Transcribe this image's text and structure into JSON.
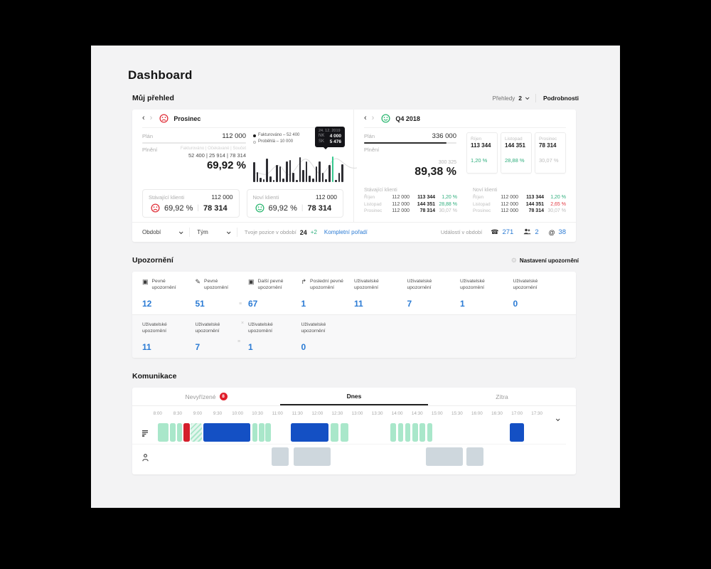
{
  "icons": {
    "nav_prev": "‹",
    "nav_next": "›",
    "gear": "⚙",
    "phone": "☎",
    "at": "@",
    "display": "▣",
    "pen": "✎",
    "return": "↱",
    "close": "×",
    "drag": "≡"
  },
  "header": {
    "title": "Dashboard"
  },
  "overview": {
    "title": "Můj přehled",
    "controls": {
      "views_label": "Přehledy",
      "views_count": "2",
      "details": "Podrobnosti"
    },
    "left_card": {
      "title": "Prosinec",
      "mood": "sad",
      "plan_label": "Plán",
      "plan_value": "112 000",
      "fill_label": "Plnění",
      "fill_columns": "Fakturováno | Očekávané | Součet",
      "fill_values": "52 400 | 25 914 | 78 314",
      "fill_percent": "69,92 %",
      "clients": [
        {
          "label": "Stávající klienti",
          "plan": "112 000",
          "mood": "sad",
          "percent": "69,92 %",
          "value": "78 314"
        },
        {
          "label": "Noví klienti",
          "plan": "112 000",
          "mood": "happy",
          "percent": "69,92 %",
          "value": "78 314"
        }
      ]
    },
    "right_card": {
      "title": "Q4 2018",
      "mood": "happy",
      "plan_label": "Plán",
      "plan_value": "336 000",
      "plan_fill_pct": 89.38,
      "fill_label": "Plnění",
      "fill_small": "300 325",
      "fill_percent": "89,38 %",
      "months": [
        {
          "name": "Říjen",
          "value": "113 344",
          "percent": "1,20 %",
          "tone": "green"
        },
        {
          "name": "Listopad",
          "value": "144 351",
          "percent": "28,88 %",
          "tone": "green"
        },
        {
          "name": "Prosinec",
          "value": "78 314",
          "percent": "30,07 %",
          "tone": "gray"
        }
      ],
      "tables": [
        {
          "label": "Stávající klienti",
          "rows": [
            {
              "month": "Říjen",
              "plan": "112 000",
              "value": "113 344",
              "percent": "1,20 %",
              "tone": "green"
            },
            {
              "month": "Listopad",
              "plan": "112 000",
              "value": "144 351",
              "percent": "28,88 %",
              "tone": "green"
            },
            {
              "month": "Prosinec",
              "plan": "112 000",
              "value": "78 314",
              "percent": "30,07 %",
              "tone": "gray"
            }
          ]
        },
        {
          "label": "Noví klienti",
          "rows": [
            {
              "month": "Říjen",
              "plan": "112 000",
              "value": "113 344",
              "percent": "1,20 %",
              "tone": "green"
            },
            {
              "month": "Listopad",
              "plan": "112 000",
              "value": "144 351",
              "percent": "2,65 %",
              "tone": "red"
            },
            {
              "month": "Prosinec",
              "plan": "112 000",
              "value": "78 314",
              "percent": "30,07 %",
              "tone": "gray"
            }
          ]
        }
      ]
    },
    "footer": {
      "period_label": "Období",
      "team_label": "Tým",
      "position_label": "Tvoje pozice v období",
      "position_value": "24",
      "position_delta": "+2",
      "ranking_link": "Kompletní pořadí",
      "events_label": "Událostí v období",
      "events": [
        {
          "icon": "phone-icon",
          "value": "271"
        },
        {
          "icon": "people-icon",
          "value": "2"
        },
        {
          "icon": "at-icon",
          "value": "38"
        }
      ]
    }
  },
  "chart_data": {
    "type": "bar",
    "legend": [
      {
        "marker": "filled",
        "label": "Fakturováno – 52 400"
      },
      {
        "marker": "open",
        "label": "Proběhlá – 10 000"
      }
    ],
    "tooltip": {
      "date": "24. 12. 2019",
      "rows": [
        {
          "key": "NK",
          "value": "4 000"
        },
        {
          "key": "SK",
          "value": "5 476"
        }
      ]
    },
    "relative_heights": [
      60,
      30,
      14,
      8,
      72,
      18,
      6,
      52,
      48,
      10,
      62,
      68,
      28,
      6,
      76,
      38,
      62,
      20,
      10,
      48,
      62,
      28,
      8,
      52,
      78,
      6,
      28,
      54
    ],
    "highlight_index": 24,
    "line_overlay": true
  },
  "alerts": {
    "title": "Upozornění",
    "settings_label": "Nastavení upozornění",
    "row1": [
      {
        "icon": "display-icon",
        "label": "Pevné upozornění",
        "value": "12"
      },
      {
        "icon": "pen-icon",
        "label": "Pevné upozornění",
        "value": "51"
      },
      {
        "icon": "display-icon",
        "label": "Další pevné upozornění",
        "value": "67"
      },
      {
        "icon": "return-icon",
        "label": "Poslední pevné upozornění",
        "value": "1"
      },
      {
        "icon": null,
        "label": "Uživatelské upozornění",
        "value": "11"
      },
      {
        "icon": null,
        "label": "Uživatelské upozornění",
        "value": "7"
      },
      {
        "icon": null,
        "label": "Uživatelské upozornění",
        "value": "1"
      },
      {
        "icon": null,
        "label": "Uživatelské upozornění",
        "value": "0"
      }
    ],
    "row2": [
      {
        "label": "Uživatelské upozornění",
        "value": "11"
      },
      {
        "label": "Uživatelské upozornění",
        "value": "7"
      },
      {
        "label": "Uživatelské upozornění",
        "value": "1"
      },
      {
        "label": "Uživatelské upozornění",
        "value": "0"
      }
    ]
  },
  "communication": {
    "title": "Komunikace",
    "tabs": [
      {
        "label": "Nevyřízené",
        "badge": "8",
        "active": false
      },
      {
        "label": "Dnes",
        "badge": null,
        "active": true
      },
      {
        "label": "Zítra",
        "badge": null,
        "active": false
      }
    ],
    "time_labels": [
      "8:00",
      "8:30",
      "9:00",
      "9:30",
      "10:00",
      "10:30",
      "11:00",
      "11:30",
      "12:00",
      "12:30",
      "13:00",
      "13:30",
      "14:00",
      "14:30",
      "15:00",
      "15:30",
      "16:00",
      "16:30",
      "17:00",
      "17:30"
    ],
    "timeline_start_min": 480,
    "timeline_end_min": 1080,
    "rows": [
      {
        "icon": "call-log-icon",
        "blocks": [
          {
            "type": "mint",
            "start": 480,
            "dur": 16
          },
          {
            "type": "mint",
            "start": 498,
            "dur": 9
          },
          {
            "type": "mint",
            "start": 509,
            "dur": 8
          },
          {
            "type": "red",
            "start": 519,
            "dur": 9
          },
          {
            "type": "hatch",
            "start": 529,
            "dur": 18
          },
          {
            "type": "blue",
            "start": 549,
            "dur": 70
          },
          {
            "type": "mint",
            "start": 622,
            "dur": 8
          },
          {
            "type": "mint",
            "start": 632,
            "dur": 8
          },
          {
            "type": "mint",
            "start": 642,
            "dur": 8
          },
          {
            "type": "blue",
            "start": 680,
            "dur": 57
          },
          {
            "type": "mint",
            "start": 740,
            "dur": 12
          },
          {
            "type": "mint",
            "start": 755,
            "dur": 12
          },
          {
            "type": "mint",
            "start": 830,
            "dur": 8
          },
          {
            "type": "mint",
            "start": 841,
            "dur": 8
          },
          {
            "type": "mint",
            "start": 852,
            "dur": 8
          },
          {
            "type": "mint",
            "start": 863,
            "dur": 8
          },
          {
            "type": "mint",
            "start": 874,
            "dur": 8
          },
          {
            "type": "mint",
            "start": 885,
            "dur": 8
          },
          {
            "type": "blue",
            "start": 1009,
            "dur": 22
          }
        ]
      },
      {
        "icon": "person-icon",
        "blocks": [
          {
            "type": "gray",
            "start": 651,
            "dur": 26
          },
          {
            "type": "gray",
            "start": 684,
            "dur": 56
          },
          {
            "type": "gray",
            "start": 883,
            "dur": 56
          },
          {
            "type": "gray",
            "start": 944,
            "dur": 26
          }
        ]
      }
    ]
  },
  "colors": {
    "accent_blue": "#2b7bd4",
    "green_text": "#2fae7d",
    "red_text": "#e23a43",
    "mint_block": "#a9e7ca",
    "blue_block": "#1450c4",
    "red_block": "#d41f2c",
    "gray_block": "#ced7dd",
    "badge_red": "#e01e2b",
    "highlight_bar": "#35c98e"
  }
}
